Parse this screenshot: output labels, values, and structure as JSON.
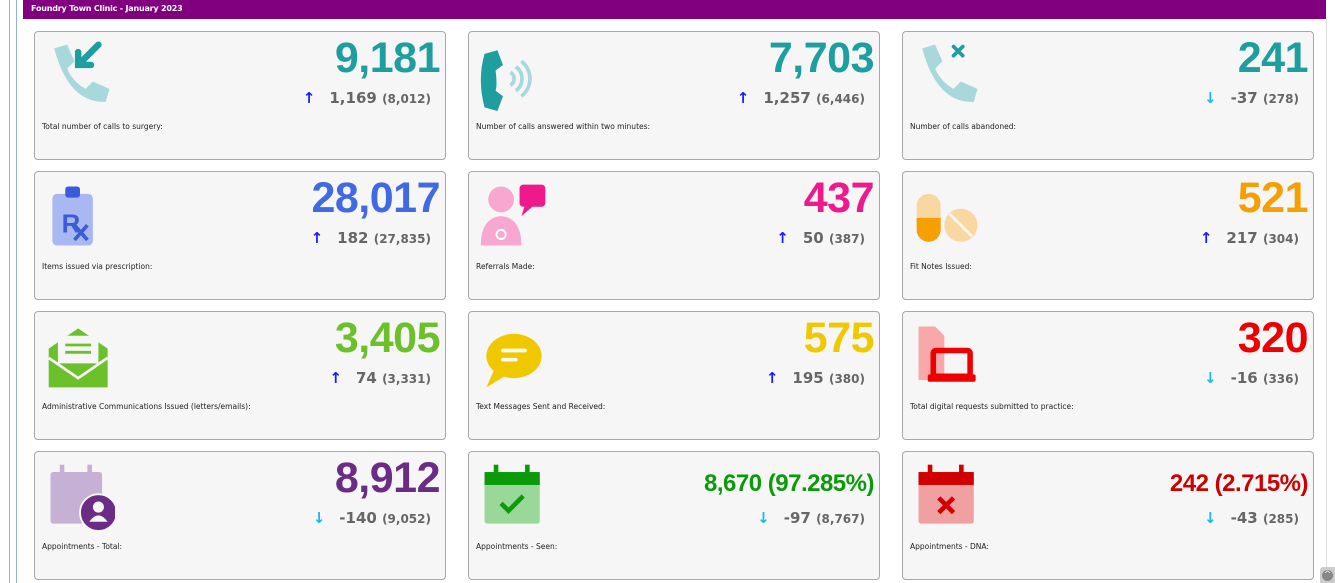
{
  "header": {
    "title": "Foundry Town Clinic - January 2023"
  },
  "cards": [
    {
      "icon": "incoming-call-icon",
      "value": "9,181",
      "color": "#1e9e9e",
      "direction": "up",
      "change": "1,169",
      "previous": "(8,012)",
      "label": "Total number of calls to surgery:"
    },
    {
      "icon": "call-answered-icon",
      "value": "7,703",
      "color": "#1e9e9e",
      "direction": "up",
      "change": "1,257",
      "previous": "(6,446)",
      "label": "Number of calls answered within two minutes:"
    },
    {
      "icon": "call-abandoned-icon",
      "value": "241",
      "color": "#1e9e9e",
      "direction": "down",
      "change": "-37",
      "previous": "(278)",
      "label": "Number of calls abandoned:"
    },
    {
      "icon": "prescription-icon",
      "value": "28,017",
      "color": "#4169e1",
      "direction": "up",
      "change": "182",
      "previous": "(27,835)",
      "label": "Items issued via prescription:"
    },
    {
      "icon": "doctor-referral-icon",
      "value": "437",
      "color": "#ee1a8c",
      "direction": "up",
      "change": "50",
      "previous": "(387)",
      "label": "Referrals Made:"
    },
    {
      "icon": "pills-icon",
      "value": "521",
      "color": "#f5a000",
      "direction": "up",
      "change": "217",
      "previous": "(304)",
      "label": "Fit Notes Issued:"
    },
    {
      "icon": "envelope-letter-icon",
      "value": "3,405",
      "color": "#6cc02a",
      "direction": "up",
      "change": "74",
      "previous": "(3,331)",
      "label": "Administrative Communications Issued (letters/emails):"
    },
    {
      "icon": "speech-bubble-icon",
      "value": "575",
      "color": "#f0c800",
      "direction": "up",
      "change": "195",
      "previous": "(380)",
      "label": "Text Messages Sent and Received:"
    },
    {
      "icon": "digital-request-icon",
      "value": "320",
      "color": "#ee0000",
      "direction": "down",
      "change": "-16",
      "previous": "(336)",
      "label": "Total digital requests submitted to practice:"
    },
    {
      "icon": "calendar-user-icon",
      "value": "8,912",
      "color": "#6a2c85",
      "direction": "down",
      "change": "-140",
      "previous": "(9,052)",
      "label": "Appointments - Total:"
    },
    {
      "icon": "calendar-check-icon",
      "value": "8,670 (97.285%)",
      "color": "#0a9a0a",
      "direction": "down",
      "change": "-97",
      "previous": "(8,767)",
      "label": "Appointments - Seen:"
    },
    {
      "icon": "calendar-cross-icon",
      "value": "242 (2.715%)",
      "color": "#cc0000",
      "direction": "down",
      "change": "-43",
      "previous": "(285)",
      "label": "Appointments - DNA:"
    }
  ],
  "arrows": {
    "up": "↑",
    "down": "↓"
  }
}
